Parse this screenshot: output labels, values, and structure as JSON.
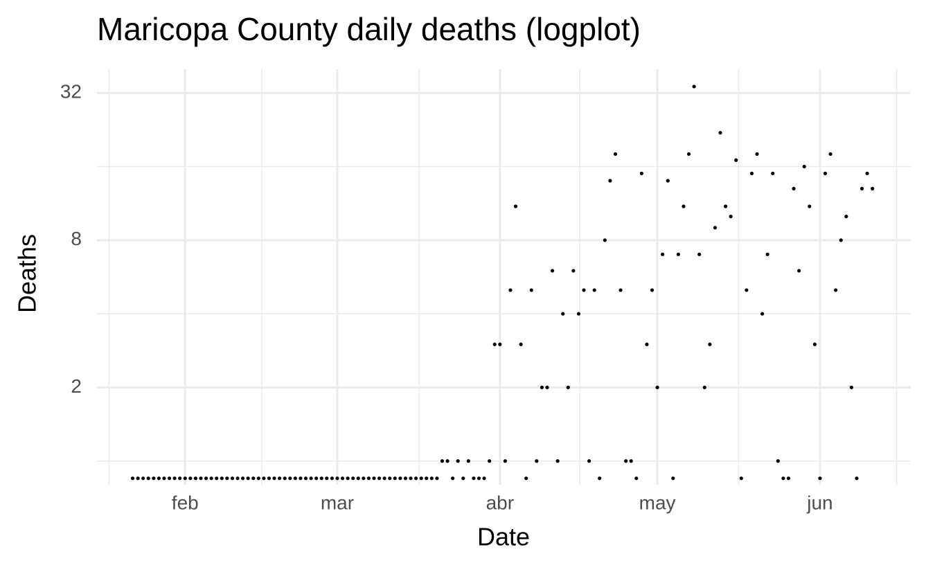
{
  "chart_data": {
    "type": "scatter",
    "title": "Maricopa County daily deaths (logplot)",
    "x_label": "Date",
    "y_label": "Deaths",
    "y_scale": "log",
    "grid": true,
    "color": "#000000",
    "x": [
      22,
      23,
      24,
      25,
      26,
      27,
      28,
      29,
      30,
      31,
      32,
      33,
      34,
      35,
      36,
      37,
      38,
      39,
      40,
      41,
      42,
      43,
      44,
      45,
      46,
      47,
      48,
      49,
      50,
      51,
      52,
      53,
      54,
      55,
      56,
      57,
      58,
      59,
      60,
      61,
      62,
      63,
      64,
      65,
      66,
      67,
      68,
      69,
      70,
      71,
      72,
      73,
      74,
      75,
      76,
      77,
      78,
      79,
      80,
      81,
      82,
      83,
      84,
      85,
      86,
      87,
      88,
      89,
      90,
      91,
      92,
      93,
      94,
      95,
      96,
      97,
      98,
      99,
      100,
      101,
      102,
      103,
      104,
      105,
      106,
      107,
      108,
      109,
      110,
      111,
      112,
      113,
      114,
      115,
      116,
      117,
      118,
      119,
      120,
      121,
      122,
      123,
      124,
      125,
      126,
      127,
      128,
      129,
      130,
      131,
      132,
      133,
      134,
      135,
      136,
      137,
      138,
      139,
      140,
      141,
      142,
      143,
      144,
      145,
      146,
      147,
      148,
      149,
      150,
      151,
      152,
      153,
      154,
      155,
      156,
      157,
      158,
      159,
      160,
      161,
      162,
      163
    ],
    "values": [
      0.85,
      0.85,
      0.85,
      0.85,
      0.85,
      0.85,
      0.85,
      0.85,
      0.85,
      0.85,
      0.85,
      0.85,
      0.85,
      0.85,
      0.85,
      0.85,
      0.85,
      0.85,
      0.85,
      0.85,
      0.85,
      0.85,
      0.85,
      0.85,
      0.85,
      0.85,
      0.85,
      0.85,
      0.85,
      0.85,
      0.85,
      0.85,
      0.85,
      0.85,
      0.85,
      0.85,
      0.85,
      0.85,
      0.85,
      0.85,
      0.85,
      0.85,
      0.85,
      0.85,
      0.85,
      0.85,
      0.85,
      0.85,
      0.85,
      0.85,
      0.85,
      0.85,
      0.85,
      0.85,
      0.85,
      0.85,
      0.85,
      0.85,
      0.85,
      1,
      1,
      0.85,
      1,
      0.85,
      1,
      0.85,
      0.85,
      0.85,
      1,
      3,
      3,
      1,
      5,
      11,
      3,
      0.85,
      5,
      1,
      2,
      2,
      6,
      1,
      4,
      2,
      6,
      4,
      5,
      1,
      5,
      0.85,
      8,
      14,
      18,
      5,
      1,
      1,
      0.85,
      15,
      3,
      5,
      2,
      7,
      14,
      0.85,
      7,
      11,
      18,
      34,
      7,
      2,
      3,
      9,
      22,
      11,
      10,
      17,
      0.85,
      5,
      15,
      18,
      4,
      7,
      15,
      1,
      0.85,
      0.85,
      13,
      6,
      16,
      11,
      3,
      0.85,
      15,
      18,
      5,
      8,
      10,
      2,
      0.85,
      13,
      15,
      13
    ],
    "xlim": [
      15.2,
      170.3
    ],
    "xticks": [
      {
        "value": 32,
        "label": "feb"
      },
      {
        "value": 61,
        "label": "mar"
      },
      {
        "value": 92,
        "label": "abr"
      },
      {
        "value": 122,
        "label": "may"
      },
      {
        "value": 153,
        "label": "jun"
      }
    ],
    "xminor_ticks": [
      17.5,
      46.6,
      76.6,
      107.2,
      137.5,
      167.6
    ],
    "ylim": [
      0.8,
      40
    ],
    "yticks": [
      2,
      8,
      32
    ],
    "yminor_ticks": [
      1,
      4,
      16
    ]
  }
}
